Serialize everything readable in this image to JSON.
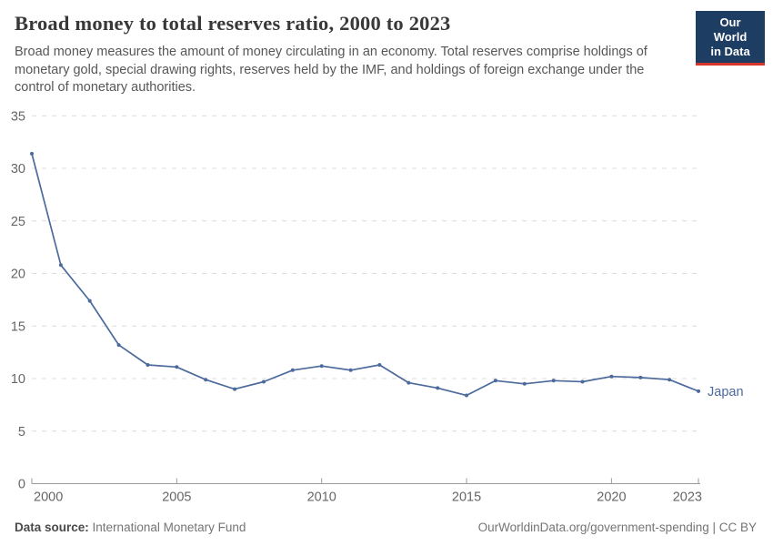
{
  "header": {
    "title": "Broad money to total reserves ratio, 2000 to 2023",
    "subtitle": "Broad money measures the amount of money circulating in an economy. Total reserves comprise holdings of monetary gold, special drawing rights, reserves held by the IMF, and holdings of foreign exchange under the control of monetary authorities."
  },
  "logo": {
    "line1": "Our World",
    "line2": "in Data",
    "bg_color": "#1d3d63",
    "accent_color": "#d8352a"
  },
  "footer": {
    "source_label": "Data source:",
    "source_value": "International Monetary Fund",
    "credit": "OurWorldinData.org/government-spending | CC BY"
  },
  "chart_data": {
    "type": "line",
    "title": "Broad money to total reserves ratio, 2000 to 2023",
    "x": [
      2000,
      2001,
      2002,
      2003,
      2004,
      2005,
      2006,
      2007,
      2008,
      2009,
      2010,
      2011,
      2012,
      2013,
      2014,
      2015,
      2016,
      2017,
      2018,
      2019,
      2020,
      2021,
      2022,
      2023
    ],
    "series": [
      {
        "name": "Japan",
        "color": "#4c6a9c",
        "values": [
          31.4,
          20.8,
          17.4,
          13.2,
          11.3,
          11.1,
          9.9,
          9.0,
          9.7,
          10.8,
          11.2,
          10.8,
          11.3,
          9.6,
          9.1,
          8.4,
          9.8,
          9.5,
          9.8,
          9.7,
          10.2,
          10.1,
          9.9,
          8.8
        ]
      }
    ],
    "xlabel": "",
    "ylabel": "",
    "xlim": [
      2000,
      2023
    ],
    "ylim": [
      0,
      35
    ],
    "xticks": [
      2000,
      2005,
      2010,
      2015,
      2020,
      2023
    ],
    "yticks": [
      0,
      5,
      10,
      15,
      20,
      25,
      30,
      35
    ],
    "grid": "horizontal-dashed",
    "gridline_color": "#dcdcdc",
    "axis_color": "#9a9a9a",
    "tick_label_color": "#666666",
    "legend_position": "end-of-line-label"
  }
}
